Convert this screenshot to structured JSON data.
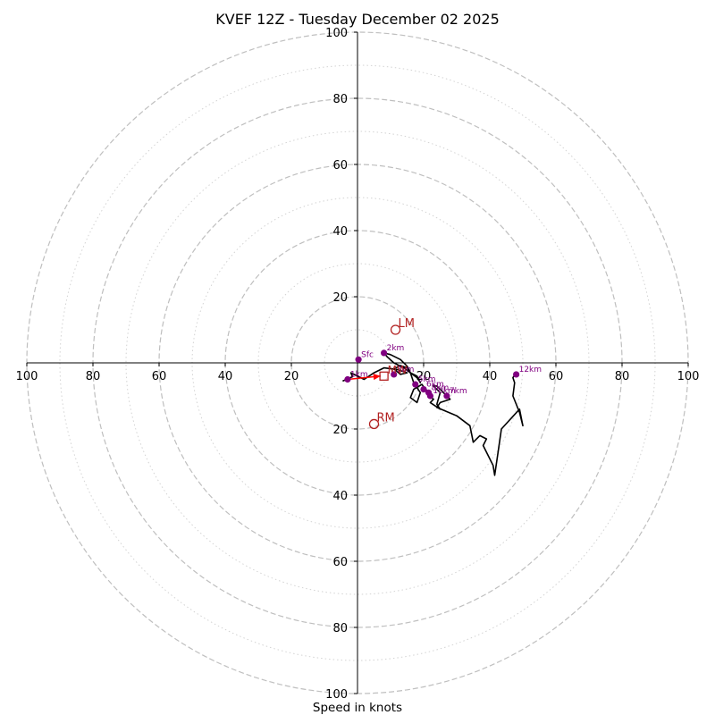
{
  "chart_data": {
    "type": "hodograph",
    "title": "KVEF 12Z - Tuesday December 02 2025",
    "xlabel": "Speed in knots",
    "axis_range_knots": [
      -100,
      100
    ],
    "ring_labels": [
      "100",
      "80",
      "60",
      "40",
      "20",
      "20",
      "40",
      "60",
      "80",
      "100"
    ],
    "x_tick_labels": [
      "100",
      "80",
      "60",
      "40",
      "20",
      "20",
      "40",
      "60",
      "80",
      "100"
    ],
    "y_tick_labels": [
      "100",
      "80",
      "60",
      "40",
      "20",
      "20",
      "40",
      "60",
      "80",
      "100"
    ],
    "x_tick_values": [
      -100,
      -80,
      -60,
      -40,
      -20,
      20,
      40,
      60,
      80,
      100
    ],
    "y_tick_values": [
      100,
      80,
      60,
      40,
      20,
      -20,
      -40,
      -60,
      -80,
      -100
    ],
    "dashed_rings": [
      20,
      40,
      60,
      80,
      100
    ],
    "dotted_rings": [
      10,
      30,
      50,
      70,
      90
    ],
    "wind_trace": [
      [
        -4.5,
        -5.5
      ],
      [
        -1.5,
        -4.2
      ],
      [
        -2,
        -3
      ],
      [
        2,
        -5
      ],
      [
        5,
        -3
      ],
      [
        8,
        -1.5
      ],
      [
        12,
        -2
      ],
      [
        15,
        -3
      ],
      [
        13,
        -3.5
      ],
      [
        11,
        -1.8
      ],
      [
        13,
        -0.8
      ],
      [
        15,
        -1.5
      ],
      [
        16,
        -3
      ],
      [
        18,
        -4
      ],
      [
        19,
        -6
      ],
      [
        18,
        -4.5
      ],
      [
        16,
        -3
      ],
      [
        14,
        -1.5
      ],
      [
        11,
        0
      ],
      [
        9,
        1.8
      ],
      [
        8,
        3
      ],
      [
        10,
        2.5
      ],
      [
        13,
        1
      ],
      [
        15,
        -1
      ],
      [
        16,
        -3
      ],
      [
        17,
        -6
      ],
      [
        19,
        -9
      ],
      [
        18,
        -12
      ],
      [
        16,
        -10.5
      ],
      [
        17,
        -8
      ],
      [
        19.5,
        -6.5
      ],
      [
        20.5,
        -8
      ],
      [
        22,
        -9
      ],
      [
        21.5,
        -10
      ],
      [
        23,
        -11
      ],
      [
        22,
        -12
      ],
      [
        25,
        -14
      ],
      [
        24,
        -12.5
      ],
      [
        25,
        -9
      ],
      [
        23,
        -7
      ],
      [
        24,
        -7
      ],
      [
        26,
        -9
      ],
      [
        27,
        -10
      ],
      [
        28,
        -11
      ],
      [
        25,
        -12
      ],
      [
        24,
        -13.5
      ],
      [
        30,
        -16
      ],
      [
        34,
        -19
      ],
      [
        35,
        -24
      ],
      [
        37,
        -22
      ],
      [
        39,
        -23
      ],
      [
        38,
        -25
      ],
      [
        41,
        -31
      ],
      [
        41.5,
        -34
      ],
      [
        42.5,
        -27
      ],
      [
        43.5,
        -20
      ],
      [
        49,
        -14
      ],
      [
        50,
        -19
      ],
      [
        49,
        -15
      ],
      [
        47,
        -10
      ],
      [
        47.5,
        -6
      ],
      [
        47,
        -4.5
      ],
      [
        48,
        -3
      ]
    ],
    "height_labels": [
      {
        "label": "Sfc",
        "u": 0.3,
        "v": 1
      },
      {
        "label": "1km",
        "u": -3,
        "v": -5
      },
      {
        "label": "2km",
        "u": 8,
        "v": 3
      },
      {
        "label": "3km",
        "u": 11,
        "v": -3.5
      },
      {
        "label": "5km",
        "u": 17.5,
        "v": -6.5
      },
      {
        "label": "6km",
        "u": 20,
        "v": -8
      },
      {
        "label": "8km",
        "u": 21.5,
        "v": -9
      },
      {
        "label": "10km",
        "u": 22,
        "v": -10
      },
      {
        "label": "7km",
        "u": 27,
        "v": -10
      },
      {
        "label": "12km",
        "u": 48,
        "v": -3.5
      }
    ],
    "storm_motion": [
      {
        "label": "LM",
        "u": 11.5,
        "v": 10
      },
      {
        "label": "RM",
        "u": 5,
        "v": -18.5
      },
      {
        "label": "MW",
        "u": 8,
        "v": -4
      }
    ],
    "shear_vector": {
      "from": [
        -3,
        -5
      ],
      "to": [
        7,
        -4
      ]
    },
    "colors": {
      "trace": "#000000",
      "height_marker": "#800080",
      "storm_motion": "#b22222",
      "shear_vector": "#ff0000",
      "grid": "#bfbfbf",
      "axis": "#000000"
    }
  }
}
